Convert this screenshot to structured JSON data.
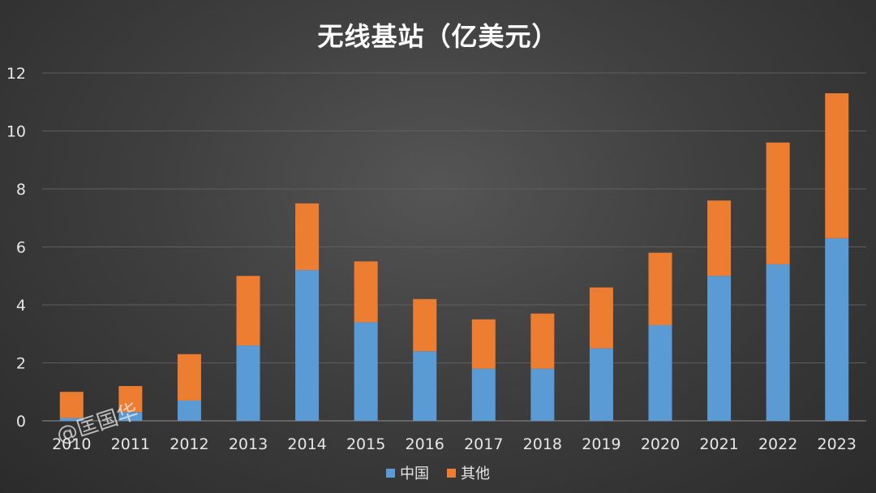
{
  "chart_data": {
    "type": "bar",
    "stacked": true,
    "title": "无线基站（亿美元）",
    "categories": [
      "2010",
      "2011",
      "2012",
      "2013",
      "2014",
      "2015",
      "2016",
      "2017",
      "2018",
      "2019",
      "2020",
      "2021",
      "2022",
      "2023"
    ],
    "series": [
      {
        "name": "中国",
        "color": "#5b9bd5",
        "values": [
          0.1,
          0.3,
          0.7,
          2.6,
          5.2,
          3.4,
          2.4,
          1.8,
          1.8,
          2.5,
          3.3,
          5.0,
          5.4,
          6.3
        ]
      },
      {
        "name": "其他",
        "color": "#ed7d31",
        "values": [
          0.9,
          0.9,
          1.6,
          2.4,
          2.3,
          2.1,
          1.8,
          1.7,
          1.9,
          2.1,
          2.5,
          2.6,
          4.2,
          5.0
        ]
      }
    ],
    "yticks": [
      "0",
      "2",
      "4",
      "6",
      "8",
      "10",
      "12"
    ],
    "ylim": [
      0,
      12
    ],
    "grid": true,
    "legend_position": "bottom"
  },
  "watermark": "@匡国华"
}
